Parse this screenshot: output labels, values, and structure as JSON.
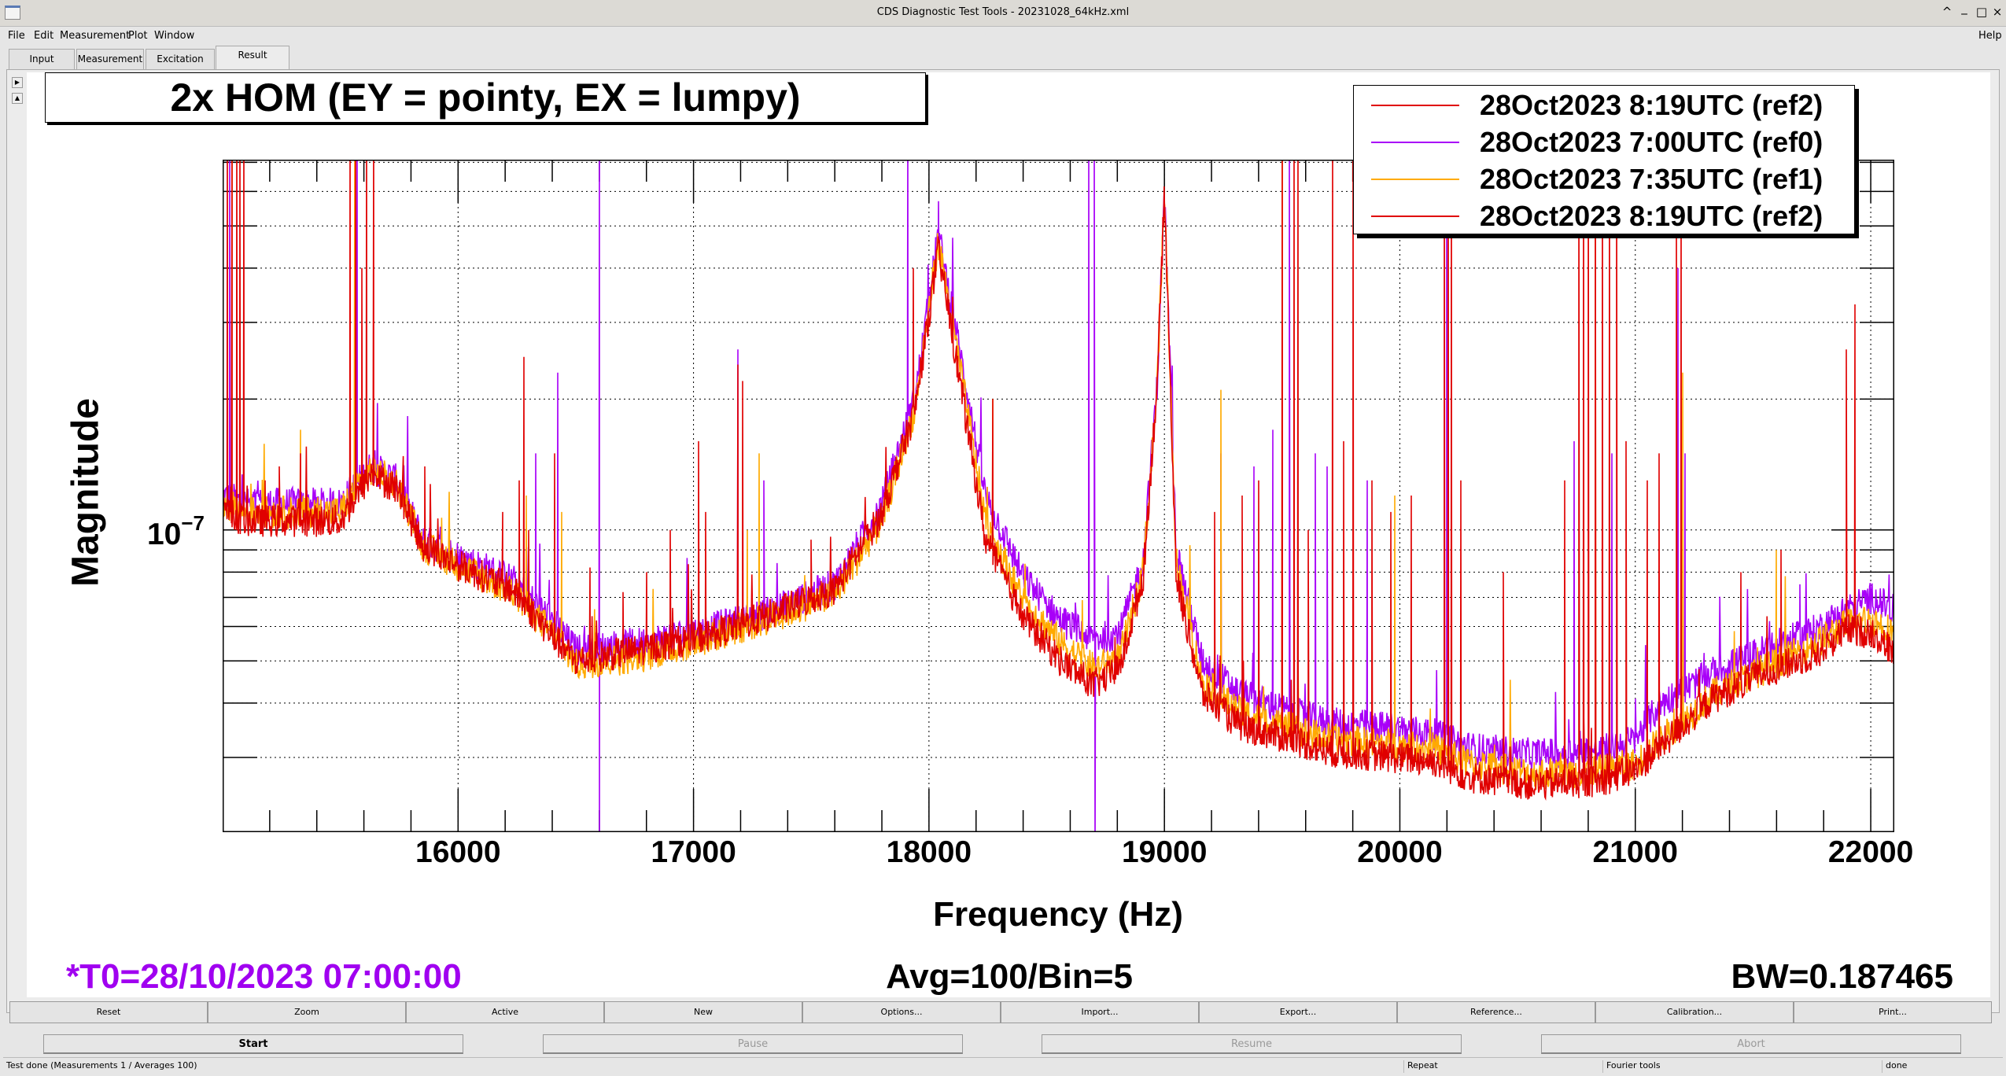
{
  "window": {
    "title": "CDS Diagnostic Test Tools - 20231028_64kHz.xml",
    "controls": [
      "^",
      "_",
      "□",
      "×"
    ]
  },
  "menu": {
    "items": [
      "File",
      "Edit",
      "Measurement",
      "Plot",
      "Window"
    ],
    "help": "Help"
  },
  "tabs": [
    {
      "label": "Input"
    },
    {
      "label": "Measurement"
    },
    {
      "label": "Excitation"
    },
    {
      "label": "Result",
      "selected": true
    }
  ],
  "plot_buttons": [
    "Reset",
    "Zoom",
    "Active",
    "New",
    "Options...",
    "Import...",
    "Export...",
    "Reference...",
    "Calibration...",
    "Print..."
  ],
  "run_buttons": {
    "start": "Start",
    "pause": "Pause",
    "resume": "Resume",
    "abort": "Abort"
  },
  "status": {
    "message": "Test done (Measurements 1 / Averages 100)",
    "mode": "Repeat",
    "tool": "Fourier tools",
    "state": "done"
  },
  "footer": {
    "t0": "*T0=28/10/2023 07:00:00",
    "avg": "Avg=100/Bin=5",
    "bw": "BW=0.187465",
    "t0_color": "#a000f0"
  },
  "chart_data": {
    "type": "line",
    "title": "2x HOM (EY = pointy, EX = lumpy)",
    "xlabel": "Frequency (Hz)",
    "ylabel": "Magnitude",
    "xlim": [
      15000,
      22100
    ],
    "ylim": [
      2.02e-08,
      7.1e-07
    ],
    "yscale": "log",
    "x_ticks": [
      16000,
      17000,
      18000,
      19000,
      20000,
      21000,
      22000
    ],
    "x_tick_labels": [
      "16000",
      "17000",
      "18000",
      "19000",
      "20000",
      "21000",
      "22000"
    ],
    "x_minor_step": 200,
    "y_tick_label": {
      "value": 1e-07,
      "base": "10",
      "exp": "−7"
    },
    "y_minor_ticks": [
      2e-08,
      3e-08,
      4e-08,
      5e-08,
      6e-08,
      7e-08,
      8e-08,
      9e-08,
      1e-07,
      2e-07,
      3e-07,
      4e-07,
      5e-07,
      6e-07,
      7e-07
    ],
    "grid": true,
    "legend_position": "top-right",
    "legend": [
      {
        "label": "28Oct2023 8:19UTC (ref2)",
        "color": "#e00000"
      },
      {
        "label": "28Oct2023 7:00UTC (ref0)",
        "color": "#a800f8"
      },
      {
        "label": "28Oct2023 7:35UTC (ref1)",
        "color": "#ffaa00"
      },
      {
        "label": "28Oct2023 8:19UTC (ref2)",
        "color": "#e00000"
      }
    ],
    "freq_grid": [
      15000,
      15100,
      15500,
      15630,
      15740,
      15850,
      16000,
      16230,
      16400,
      16500,
      16770,
      17050,
      17300,
      17600,
      17800,
      17940,
      18040,
      18100,
      18240,
      18400,
      18560,
      18700,
      18810,
      18910,
      18970,
      19000,
      19050,
      19160,
      19320,
      19540,
      19700,
      19980,
      20140,
      20300,
      20570,
      20850,
      21000,
      21110,
      21330,
      21550,
      21770,
      21900,
      22010,
      22100
    ],
    "series": [
      {
        "name": "ref0",
        "label": "28Oct2023 7:00UTC (ref0)",
        "color": "#a800f8",
        "baseline_e8": [
          12,
          11.5,
          11.5,
          14,
          13,
          9.5,
          8.7,
          7.7,
          6.2,
          5.3,
          5.5,
          5.9,
          6.4,
          7.5,
          11.5,
          20,
          48,
          32,
          12,
          7.8,
          6.2,
          5.6,
          5.8,
          8.5,
          22,
          60,
          9,
          5.0,
          4.2,
          3.8,
          3.6,
          3.5,
          3.4,
          3.15,
          3.05,
          3.1,
          3.3,
          4.0,
          4.7,
          5.3,
          5.9,
          6.6,
          7.0,
          6.5
        ],
        "spikes": [
          [
            15030,
            2e-06
          ],
          [
            15570,
            2e-06
          ],
          [
            16330,
            1.5e-07
          ],
          [
            16423,
            2.3e-07
          ],
          [
            16600,
            2e-06
          ],
          [
            16602,
            1e-09
          ],
          [
            17190,
            2.6e-07
          ],
          [
            17300,
            1.3e-07
          ],
          [
            17911,
            2e-06
          ],
          [
            18040,
            5.7e-07
          ],
          [
            18400,
            7.7e-08
          ],
          [
            18680,
            2e-06
          ],
          [
            18703,
            2e-06
          ],
          [
            18705,
            1e-09
          ],
          [
            19240,
            1.5e-07
          ],
          [
            19380,
            1.4e-07
          ],
          [
            19460,
            1.7e-07
          ],
          [
            19530,
            2e-06
          ],
          [
            19640,
            1.5e-07
          ],
          [
            19690,
            1.4e-07
          ],
          [
            19860,
            1.3e-07
          ],
          [
            20200,
            2e-06
          ],
          [
            20740,
            1.6e-07
          ],
          [
            20900,
            1.5e-07
          ],
          [
            21180,
            4e-07
          ],
          [
            21210,
            1.5e-07
          ],
          [
            21700,
            7.5e-08
          ]
        ]
      },
      {
        "name": "ref1",
        "label": "28Oct2023 7:35UTC (ref1)",
        "color": "#ffaa00",
        "baseline_e8": [
          11.5,
          11,
          11,
          13.8,
          12.8,
          9.2,
          8.3,
          7.2,
          5.8,
          4.9,
          5.1,
          5.6,
          6.2,
          7.1,
          10.5,
          19,
          46,
          30,
          10.5,
          6.9,
          5.5,
          4.8,
          5.1,
          8.0,
          22,
          60,
          8.5,
          4.5,
          3.8,
          3.5,
          3.3,
          3.2,
          3.15,
          2.9,
          2.75,
          2.8,
          2.9,
          3.3,
          4.2,
          4.8,
          5.5,
          6.1,
          6.2,
          5.8
        ],
        "spikes": [
          [
            15040,
            2e-06
          ],
          [
            15330,
            1.7e-07
          ],
          [
            15560,
            2e-06
          ],
          [
            16290,
            1.2e-07
          ],
          [
            16440,
            1.1e-07
          ],
          [
            17230,
            1e-07
          ],
          [
            17280,
            1.5e-07
          ],
          [
            18270,
            2e-07
          ],
          [
            19240,
            2.1e-07
          ],
          [
            19500,
            2e-06
          ],
          [
            19980,
            1.2e-07
          ],
          [
            20830,
            2e-06
          ],
          [
            21200,
            2.3e-07
          ],
          [
            21600,
            9e-08
          ]
        ]
      },
      {
        "name": "ref2",
        "label": "28Oct2023 8:19UTC (ref2)",
        "color": "#e00000",
        "baseline_e8": [
          11,
          10.5,
          10.5,
          13.4,
          12.5,
          9.2,
          8.3,
          7.3,
          5.7,
          5.0,
          5.3,
          5.7,
          6.3,
          7.3,
          10.9,
          18.8,
          44,
          28,
          9.5,
          6.3,
          5.0,
          4.4,
          4.8,
          7.8,
          22,
          60,
          7.8,
          4.2,
          3.55,
          3.3,
          3.1,
          3.0,
          2.95,
          2.7,
          2.6,
          2.65,
          2.8,
          3.2,
          4.1,
          4.7,
          5.2,
          5.9,
          5.8,
          5.2
        ],
        "spikes": [
          [
            15020,
            2e-06
          ],
          [
            15040,
            2e-06
          ],
          [
            15060,
            2e-06
          ],
          [
            15075,
            2e-06
          ],
          [
            15090,
            2e-06
          ],
          [
            15180,
            1.3e-07
          ],
          [
            15240,
            1.4e-07
          ],
          [
            15330,
            1.5e-07
          ],
          [
            15540,
            2e-06
          ],
          [
            15565,
            2e-06
          ],
          [
            15590,
            4e-07
          ],
          [
            15610,
            2e-06
          ],
          [
            15640,
            2e-06
          ],
          [
            15690,
            1.3e-07
          ],
          [
            15860,
            1.4e-07
          ],
          [
            16190,
            1.1e-07
          ],
          [
            16260,
            1.3e-07
          ],
          [
            16278,
            2.5e-07
          ],
          [
            16300,
            1e-07
          ],
          [
            16410,
            1.5e-07
          ],
          [
            16560,
            8.2e-08
          ],
          [
            16700,
            7.2e-08
          ],
          [
            16800,
            8e-08
          ],
          [
            16900,
            1e-07
          ],
          [
            17020,
            1.6e-07
          ],
          [
            17050,
            1.1e-07
          ],
          [
            17190,
            2.4e-07
          ],
          [
            17210,
            2.2e-07
          ],
          [
            17500,
            9.5e-08
          ],
          [
            17935,
            4e-07
          ],
          [
            18270,
            2e-07
          ],
          [
            19214,
            1.1e-07
          ],
          [
            19330,
            1.2e-07
          ],
          [
            19400,
            1.3e-07
          ],
          [
            19500,
            2e-06
          ],
          [
            19550,
            2e-06
          ],
          [
            19567,
            2e-06
          ],
          [
            19610,
            1e-07
          ],
          [
            19713,
            2e-06
          ],
          [
            19760,
            1.6e-07
          ],
          [
            19800,
            2e-06
          ],
          [
            19880,
            1.3e-07
          ],
          [
            19960,
            1.1e-07
          ],
          [
            20050,
            1.2e-07
          ],
          [
            20190,
            2e-06
          ],
          [
            20205,
            2e-06
          ],
          [
            20218,
            2e-06
          ],
          [
            20260,
            1.3e-07
          ],
          [
            20440,
            8e-08
          ],
          [
            20700,
            1.3e-07
          ],
          [
            20760,
            2e-06
          ],
          [
            20780,
            2e-06
          ],
          [
            20800,
            2e-06
          ],
          [
            20830,
            2e-06
          ],
          [
            20860,
            2e-06
          ],
          [
            20890,
            2e-06
          ],
          [
            20920,
            2e-06
          ],
          [
            20960,
            1.6e-07
          ],
          [
            21050,
            1.3e-07
          ],
          [
            21100,
            1.5e-07
          ],
          [
            21173,
            6e-07
          ],
          [
            21195,
            7e-07
          ],
          [
            21450,
            8e-08
          ],
          [
            21620,
            9e-08
          ],
          [
            21895,
            2.6e-07
          ],
          [
            21933,
            3.3e-07
          ]
        ]
      }
    ]
  }
}
